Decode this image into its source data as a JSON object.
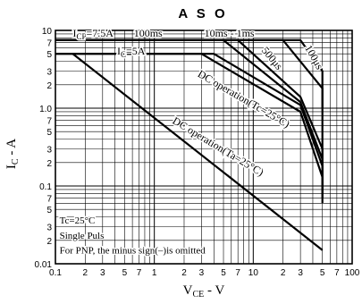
{
  "chart_data": {
    "type": "line",
    "title": "A S O",
    "xlabel": {
      "main": "V",
      "sub": "CE",
      "rest": " - V"
    },
    "ylabel": {
      "main": "I",
      "sub": "C",
      "rest": " - A"
    },
    "xscale": "log",
    "yscale": "log",
    "xlim": [
      0.1,
      100
    ],
    "ylim": [
      0.01,
      10
    ],
    "grid": true,
    "x_ticks": [
      {
        "v": 0.1,
        "t": "0.1"
      },
      {
        "v": 0.2,
        "t": "2"
      },
      {
        "v": 0.3,
        "t": "3"
      },
      {
        "v": 0.5,
        "t": "5"
      },
      {
        "v": 0.7,
        "t": "7"
      },
      {
        "v": 1,
        "t": "1"
      },
      {
        "v": 2,
        "t": "2"
      },
      {
        "v": 3,
        "t": "3"
      },
      {
        "v": 5,
        "t": "5"
      },
      {
        "v": 7,
        "t": "7"
      },
      {
        "v": 10,
        "t": "10"
      },
      {
        "v": 20,
        "t": "2"
      },
      {
        "v": 30,
        "t": "3"
      },
      {
        "v": 50,
        "t": "5"
      },
      {
        "v": 70,
        "t": "7"
      },
      {
        "v": 100,
        "t": "100"
      }
    ],
    "y_ticks": [
      {
        "v": 10,
        "t": "10"
      },
      {
        "v": 7,
        "t": "7"
      },
      {
        "v": 5,
        "t": "5"
      },
      {
        "v": 3,
        "t": "3"
      },
      {
        "v": 2,
        "t": "2"
      },
      {
        "v": 1,
        "t": "1.0"
      },
      {
        "v": 0.7,
        "t": "7"
      },
      {
        "v": 0.5,
        "t": "5"
      },
      {
        "v": 0.3,
        "t": "3"
      },
      {
        "v": 0.2,
        "t": "2"
      },
      {
        "v": 0.1,
        "t": "0.1"
      },
      {
        "v": 0.07,
        "t": "7"
      },
      {
        "v": 0.05,
        "t": "5"
      },
      {
        "v": 0.03,
        "t": "3"
      },
      {
        "v": 0.02,
        "t": "2"
      },
      {
        "v": 0.01,
        "t": "0.01"
      }
    ],
    "series": [
      {
        "points": [
          [
            0.1,
            7.5
          ],
          [
            30,
            7.5
          ],
          [
            50,
            3
          ],
          [
            50,
            1
          ]
        ]
      },
      {
        "points": [
          [
            0.1,
            7.5
          ],
          [
            20,
            7.5
          ],
          [
            50,
            1.8
          ],
          [
            50,
            0.22
          ]
        ]
      },
      {
        "points": [
          [
            0.1,
            7.5
          ],
          [
            7,
            7.5
          ],
          [
            30,
            1.4
          ],
          [
            50,
            0.3
          ],
          [
            50,
            0.09
          ]
        ]
      },
      {
        "points": [
          [
            0.1,
            7.5
          ],
          [
            5,
            7.5
          ],
          [
            30,
            1.2
          ],
          [
            50,
            0.22
          ],
          [
            50,
            0.08
          ]
        ]
      },
      {
        "points": [
          [
            0.1,
            5
          ],
          [
            4,
            5
          ],
          [
            30,
            1.1
          ],
          [
            50,
            0.18
          ],
          [
            50,
            0.07
          ]
        ]
      },
      {
        "points": [
          [
            0.1,
            5
          ],
          [
            3,
            5
          ],
          [
            30,
            0.9
          ],
          [
            50,
            0.13
          ],
          [
            50,
            0.06
          ]
        ]
      },
      {
        "points": [
          [
            0.15,
            5
          ],
          [
            50,
            0.015
          ]
        ]
      }
    ],
    "annotations": [
      {
        "text": "100ms",
        "x": 0.62,
        "y": 8.3
      },
      {
        "text": "10ms - 1ms",
        "x": 3.2,
        "y": 8.3
      },
      {
        "text": "500μs",
        "x": 12,
        "y": 5.5,
        "rotate": 50
      },
      {
        "text": "100μs",
        "x": 33,
        "y": 6,
        "rotate": 60
      },
      {
        "text": "DC  operation(Tc=25°C)",
        "x": 2.7,
        "y": 2.6,
        "rotate": 30
      },
      {
        "text": "DC  operation(Ta=25°C)",
        "x": 1.5,
        "y": 0.65,
        "rotate": 31
      }
    ],
    "current_labels": [
      {
        "main": "I",
        "sub": "CP",
        "rest": "=7.5A",
        "x": 0.15,
        "y": 8.3
      },
      {
        "main": "I",
        "sub": "C",
        "rest": "=5A",
        "x": 0.42,
        "y": 4.9
      }
    ],
    "notes": [
      {
        "text": "Tc=25°C",
        "x": 0.11,
        "y": 0.033
      },
      {
        "text": "Single Puls",
        "x": 0.11,
        "y": 0.021
      },
      {
        "text": "For PNP, the minus sign(–)is omitted",
        "x": 0.11,
        "y": 0.0135
      }
    ]
  }
}
